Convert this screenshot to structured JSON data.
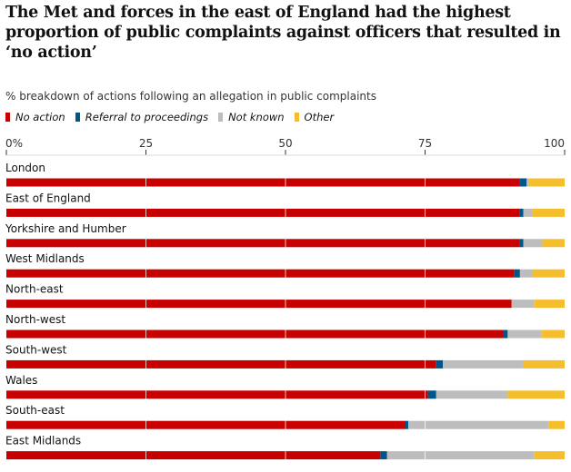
{
  "chart_data": {
    "type": "bar",
    "orientation": "horizontal",
    "stacked": true,
    "title": "The Met and forces in the east of England had the highest proportion of public complaints against officers that resulted in ‘no action’",
    "subtitle": "% breakdown of actions following an allegation in public complaints",
    "xlim": [
      0,
      100
    ],
    "x_ticks": [
      "0%",
      "25",
      "50",
      "75",
      "100"
    ],
    "grid": true,
    "legend_position": "top-left",
    "categories": [
      "London",
      "East of England",
      "Yorkshire and Humber",
      "West Midlands",
      "North-east",
      "North-west",
      "South-west",
      "Wales",
      "South-east",
      "East Midlands"
    ],
    "series": [
      {
        "name": "No action",
        "color": "#c70000",
        "values": [
          92,
          92,
          92,
          91,
          90.5,
          89,
          77,
          75.5,
          71.5,
          67
        ]
      },
      {
        "name": "Referral to proceedings",
        "color": "#005689",
        "values": [
          1.2,
          0.6,
          0.6,
          1,
          0,
          0.8,
          1.2,
          1.5,
          0.5,
          1.2
        ]
      },
      {
        "name": "Not known",
        "color": "#bdbdbd",
        "values": [
          0.3,
          1.6,
          3.4,
          2.3,
          4,
          6,
          14.3,
          12.8,
          25.1,
          26.3
        ]
      },
      {
        "name": "Other",
        "color": "#f5be2c",
        "values": [
          6.5,
          5.8,
          4,
          5.7,
          5.5,
          4.2,
          7.5,
          10.2,
          2.9,
          5.5
        ]
      }
    ]
  }
}
